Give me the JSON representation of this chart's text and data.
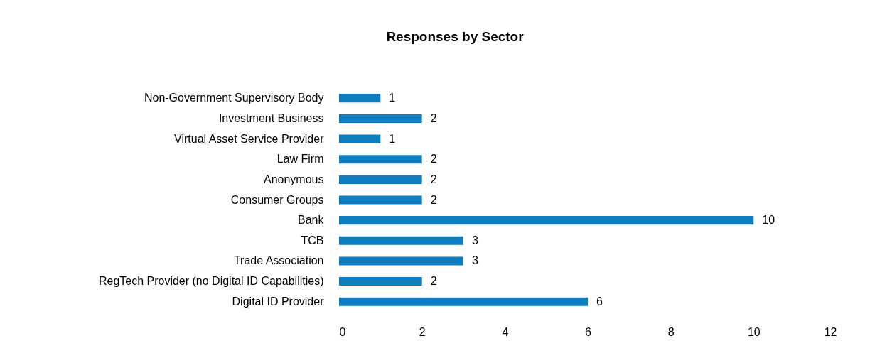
{
  "chart_data": {
    "type": "bar",
    "orientation": "horizontal",
    "title": "Responses by Sector",
    "categories": [
      "Non-Government Supervisory Body",
      "Investment Business",
      "Virtual Asset Service Provider",
      "Law Firm",
      "Anonymous",
      "Consumer Groups",
      "Bank",
      "TCB",
      "Trade Association",
      "RegTech Provider (no Digital ID Capabilities)",
      "Digital ID Provider"
    ],
    "values": [
      1,
      2,
      1,
      2,
      2,
      2,
      10,
      3,
      3,
      2,
      6
    ],
    "color": "#0e7dbf",
    "xlim": [
      0,
      12
    ],
    "xticks": [
      0,
      2,
      4,
      6,
      8,
      10,
      12
    ],
    "data_labels": true
  }
}
